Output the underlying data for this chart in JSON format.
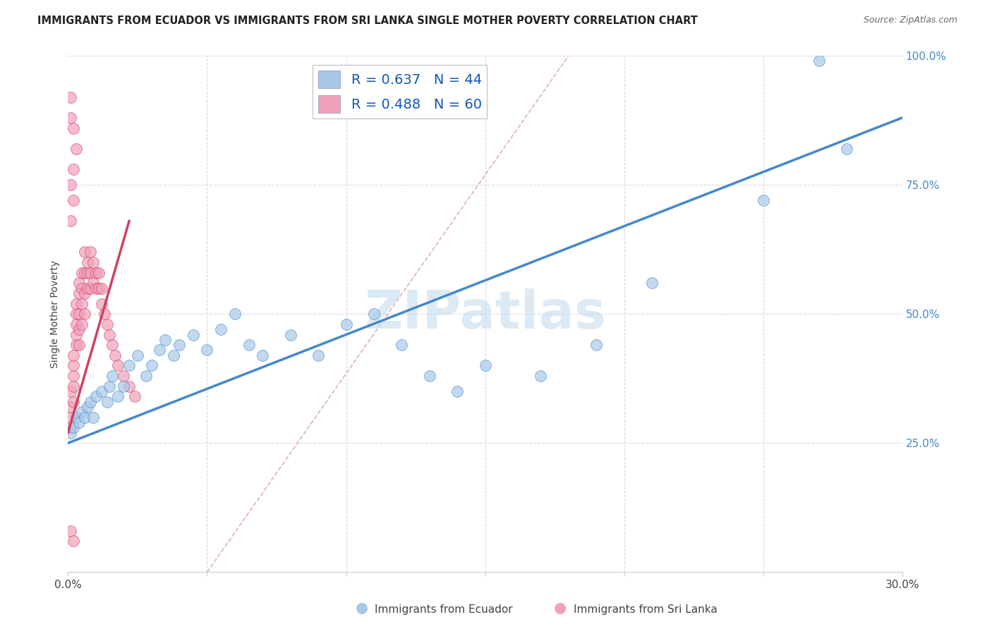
{
  "title": "IMMIGRANTS FROM ECUADOR VS IMMIGRANTS FROM SRI LANKA SINGLE MOTHER POVERTY CORRELATION CHART",
  "source": "Source: ZipAtlas.com",
  "ylabel": "Single Mother Poverty",
  "legend_label_blue": "Immigrants from Ecuador",
  "legend_label_pink": "Immigrants from Sri Lanka",
  "R_blue": 0.637,
  "N_blue": 44,
  "R_pink": 0.488,
  "N_pink": 60,
  "xlim": [
    0.0,
    0.3
  ],
  "ylim": [
    0.0,
    1.0
  ],
  "color_blue": "#a8c8e8",
  "color_pink": "#f0a0b8",
  "line_blue": "#4488cc",
  "line_pink": "#d04060",
  "line_ref": "#e0b0c0",
  "background_color": "#ffffff",
  "grid_color": "#d8d8e8",
  "watermark": "ZIPatlas",
  "ecuador_x": [
    0.001,
    0.002,
    0.003,
    0.004,
    0.005,
    0.006,
    0.007,
    0.008,
    0.009,
    0.01,
    0.012,
    0.014,
    0.015,
    0.016,
    0.018,
    0.02,
    0.022,
    0.025,
    0.028,
    0.03,
    0.033,
    0.035,
    0.038,
    0.04,
    0.045,
    0.05,
    0.055,
    0.06,
    0.065,
    0.07,
    0.08,
    0.09,
    0.1,
    0.11,
    0.12,
    0.13,
    0.14,
    0.15,
    0.17,
    0.19,
    0.21,
    0.25,
    0.27,
    0.28
  ],
  "ecuador_y": [
    0.27,
    0.28,
    0.3,
    0.29,
    0.31,
    0.3,
    0.32,
    0.33,
    0.3,
    0.34,
    0.35,
    0.33,
    0.36,
    0.38,
    0.34,
    0.36,
    0.4,
    0.42,
    0.38,
    0.4,
    0.43,
    0.45,
    0.42,
    0.44,
    0.46,
    0.43,
    0.47,
    0.5,
    0.44,
    0.42,
    0.46,
    0.42,
    0.48,
    0.5,
    0.44,
    0.38,
    0.35,
    0.4,
    0.38,
    0.44,
    0.56,
    0.72,
    0.99,
    0.82
  ],
  "srilanka_x": [
    0.001,
    0.001,
    0.001,
    0.001,
    0.002,
    0.002,
    0.002,
    0.002,
    0.002,
    0.003,
    0.003,
    0.003,
    0.003,
    0.003,
    0.004,
    0.004,
    0.004,
    0.004,
    0.004,
    0.005,
    0.005,
    0.005,
    0.005,
    0.006,
    0.006,
    0.006,
    0.006,
    0.007,
    0.007,
    0.007,
    0.008,
    0.008,
    0.008,
    0.009,
    0.009,
    0.01,
    0.01,
    0.011,
    0.011,
    0.012,
    0.012,
    0.013,
    0.014,
    0.015,
    0.016,
    0.017,
    0.018,
    0.02,
    0.022,
    0.024,
    0.001,
    0.002,
    0.002,
    0.003,
    0.001,
    0.001,
    0.002,
    0.001,
    0.001,
    0.002
  ],
  "srilanka_y": [
    0.28,
    0.3,
    0.32,
    0.35,
    0.33,
    0.36,
    0.38,
    0.4,
    0.42,
    0.44,
    0.46,
    0.48,
    0.5,
    0.52,
    0.44,
    0.47,
    0.5,
    0.54,
    0.56,
    0.48,
    0.52,
    0.55,
    0.58,
    0.5,
    0.54,
    0.58,
    0.62,
    0.55,
    0.58,
    0.6,
    0.55,
    0.58,
    0.62,
    0.56,
    0.6,
    0.55,
    0.58,
    0.55,
    0.58,
    0.52,
    0.55,
    0.5,
    0.48,
    0.46,
    0.44,
    0.42,
    0.4,
    0.38,
    0.36,
    0.34,
    0.68,
    0.72,
    0.78,
    0.82,
    0.88,
    0.92,
    0.86,
    0.75,
    0.08,
    0.06
  ],
  "ec_line_x0": 0.0,
  "ec_line_y0": 0.25,
  "ec_line_x1": 0.3,
  "ec_line_y1": 0.88,
  "sl_line_x0": 0.0,
  "sl_line_y0": 0.27,
  "sl_line_x1": 0.022,
  "sl_line_y1": 0.68,
  "ref_line_x0": 0.05,
  "ref_line_y0": 0.0,
  "ref_line_x1": 0.18,
  "ref_line_y1": 1.0
}
